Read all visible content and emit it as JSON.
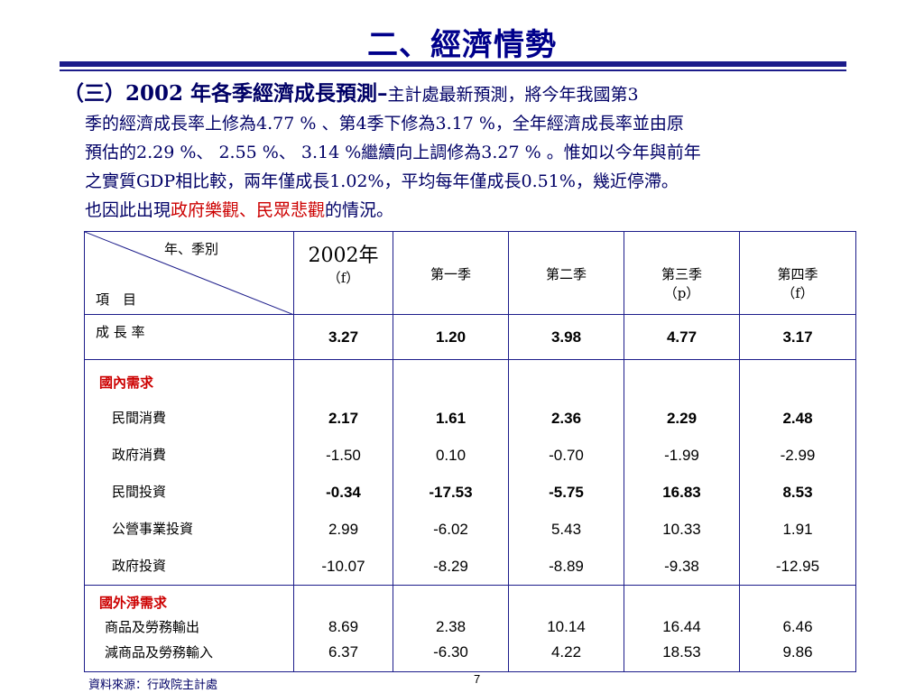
{
  "title": "二、經濟情勢",
  "paragraph": {
    "heading": "（三）2002 年各季經濟成長預測",
    "dash": "–",
    "line1": "主計處最新預測，將今年我國第3",
    "line2": "季的經濟成長率上修為4.77 % 、第4季下修為3.17 %，全年經濟成長率並由原",
    "line3": "預估的2.29 %、 2.55 %、 3.14 %繼續向上調修為3.27 % 。惟如以今年與前年",
    "line4": "之實質GDP相比較，兩年僅成長1.02%，平均每年僅成長0.51%，幾近停滯。",
    "line5_a": "也因此出現",
    "line5_red": "政府樂觀、民眾悲觀",
    "line5_b": "的情況。"
  },
  "table": {
    "corner_top": "年、季別",
    "corner_bottom": "項　目",
    "col_2002": "2002年",
    "col_2002_sub": "（f）",
    "col_q1": "第一季",
    "col_q2": "第二季",
    "col_q3": "第三季",
    "col_q3_sub": "（p）",
    "col_q4": "第四季",
    "col_q4_sub": "（f）",
    "growth": {
      "label": "成 長 率",
      "values": [
        "3.27",
        "1.20",
        "3.98",
        "4.77",
        "3.17"
      ]
    },
    "domestic_label": "國內需求",
    "domestic_rows": [
      {
        "label": "民間消費",
        "values": [
          "2.17",
          "1.61",
          "2.36",
          "2.29",
          "2.48"
        ],
        "bold": true
      },
      {
        "label": "政府消費",
        "values": [
          "-1.50",
          "0.10",
          "-0.70",
          "-1.99",
          "-2.99"
        ],
        "bold": false
      },
      {
        "label": "民間投資",
        "values": [
          "-0.34",
          "-17.53",
          "-5.75",
          "16.83",
          "8.53"
        ],
        "bold": true
      },
      {
        "label": "公營事業投資",
        "values": [
          "2.99",
          "-6.02",
          "5.43",
          "10.33",
          "1.91"
        ],
        "bold": false
      },
      {
        "label": "政府投資",
        "values": [
          "-10.07",
          "-8.29",
          "-8.89",
          "-9.38",
          "-12.95"
        ],
        "bold": false
      }
    ],
    "foreign_label": "國外淨需求",
    "foreign_rows": [
      {
        "label": "商品及勞務輸出",
        "values": [
          "8.69",
          "2.38",
          "10.14",
          "16.44",
          "6.46"
        ]
      },
      {
        "label": "減商品及勞務輸入",
        "values": [
          "6.37",
          "-6.30",
          "4.22",
          "18.53",
          "9.86"
        ]
      }
    ]
  },
  "footer": {
    "source": "資料來源：行政院主計處",
    "page": "7"
  },
  "colors": {
    "navy": "#00008b",
    "red": "#cc0000",
    "rule": "#1c1c8a"
  }
}
